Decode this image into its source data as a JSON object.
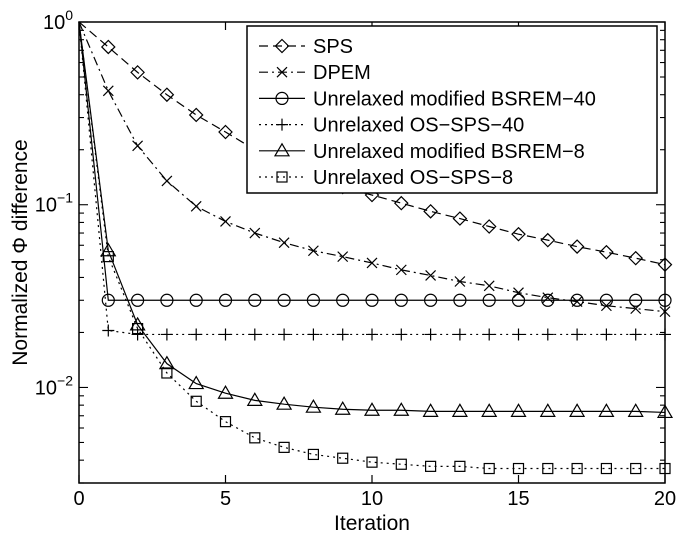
{
  "chart_data": {
    "type": "line",
    "xlabel": "Iteration",
    "ylabel": "Normalized Φ difference",
    "xlim": [
      0,
      20
    ],
    "ylim": [
      0.003,
      1
    ],
    "y_scale": "log",
    "x_ticks": [
      0,
      5,
      10,
      15,
      20
    ],
    "y_ticks": [
      {
        "value": 1,
        "base": "10",
        "exp": "0"
      },
      {
        "value": 0.1,
        "base": "10",
        "exp": "−1"
      },
      {
        "value": 0.01,
        "base": "10",
        "exp": "−2"
      }
    ],
    "grid": false,
    "legend_position": "top-right",
    "series": [
      {
        "name": "SPS",
        "marker": "diamond",
        "line": "dashed",
        "x": [
          0,
          1,
          2,
          3,
          4,
          5,
          6,
          7,
          8,
          9,
          10,
          11,
          12,
          13,
          14,
          15,
          16,
          17,
          18,
          19,
          20
        ],
        "values": [
          1,
          0.73,
          0.53,
          0.4,
          0.31,
          0.25,
          0.2,
          0.17,
          0.145,
          0.125,
          0.113,
          0.102,
          0.092,
          0.084,
          0.076,
          0.069,
          0.064,
          0.059,
          0.055,
          0.051,
          0.047
        ]
      },
      {
        "name": "DPEM",
        "marker": "x",
        "line": "dashdot",
        "x": [
          0,
          1,
          2,
          3,
          4,
          5,
          6,
          7,
          8,
          9,
          10,
          11,
          12,
          13,
          14,
          15,
          16,
          17,
          18,
          19,
          20
        ],
        "values": [
          1,
          0.42,
          0.21,
          0.135,
          0.098,
          0.081,
          0.07,
          0.062,
          0.056,
          0.052,
          0.048,
          0.044,
          0.041,
          0.038,
          0.036,
          0.033,
          0.031,
          0.0295,
          0.028,
          0.027,
          0.026
        ]
      },
      {
        "name": "Unrelaxed modified BSREM−40",
        "marker": "circle",
        "line": "solid",
        "x": [
          0,
          1,
          2,
          3,
          4,
          5,
          6,
          7,
          8,
          9,
          10,
          11,
          12,
          13,
          14,
          15,
          16,
          17,
          18,
          19,
          20
        ],
        "values": [
          1,
          0.03,
          0.03,
          0.03,
          0.03,
          0.03,
          0.03,
          0.03,
          0.03,
          0.03,
          0.03,
          0.03,
          0.03,
          0.03,
          0.03,
          0.03,
          0.03,
          0.03,
          0.03,
          0.03,
          0.03
        ]
      },
      {
        "name": "Unrelaxed OS−SPS−40",
        "marker": "plus",
        "line": "dotted",
        "x": [
          0,
          1,
          2,
          3,
          4,
          5,
          6,
          7,
          8,
          9,
          10,
          11,
          12,
          13,
          14,
          15,
          16,
          17,
          18,
          19,
          20
        ],
        "values": [
          1,
          0.0205,
          0.0195,
          0.0195,
          0.0195,
          0.0195,
          0.0195,
          0.0195,
          0.0195,
          0.0195,
          0.0195,
          0.0195,
          0.0195,
          0.0195,
          0.0195,
          0.0195,
          0.0195,
          0.0195,
          0.0195,
          0.0195,
          0.0195
        ]
      },
      {
        "name": "Unrelaxed modified BSREM−8",
        "marker": "triangle",
        "line": "solid",
        "x": [
          0,
          1,
          2,
          3,
          4,
          5,
          6,
          7,
          8,
          9,
          10,
          11,
          12,
          13,
          14,
          15,
          16,
          17,
          18,
          19,
          20
        ],
        "values": [
          1,
          0.056,
          0.022,
          0.0135,
          0.0105,
          0.0093,
          0.0085,
          0.0081,
          0.0078,
          0.0076,
          0.0075,
          0.0075,
          0.0074,
          0.0074,
          0.0074,
          0.0074,
          0.0074,
          0.0074,
          0.0074,
          0.0074,
          0.0073
        ]
      },
      {
        "name": "Unrelaxed OS−SPS−8",
        "marker": "square",
        "line": "dotted",
        "x": [
          0,
          1,
          2,
          3,
          4,
          5,
          6,
          7,
          8,
          9,
          10,
          11,
          12,
          13,
          14,
          15,
          16,
          17,
          18,
          19,
          20
        ],
        "values": [
          1,
          0.052,
          0.021,
          0.012,
          0.0084,
          0.0065,
          0.0053,
          0.0047,
          0.0043,
          0.0041,
          0.0039,
          0.0038,
          0.0037,
          0.0037,
          0.0036,
          0.0036,
          0.0036,
          0.0036,
          0.0036,
          0.0036,
          0.0036
        ]
      }
    ]
  }
}
